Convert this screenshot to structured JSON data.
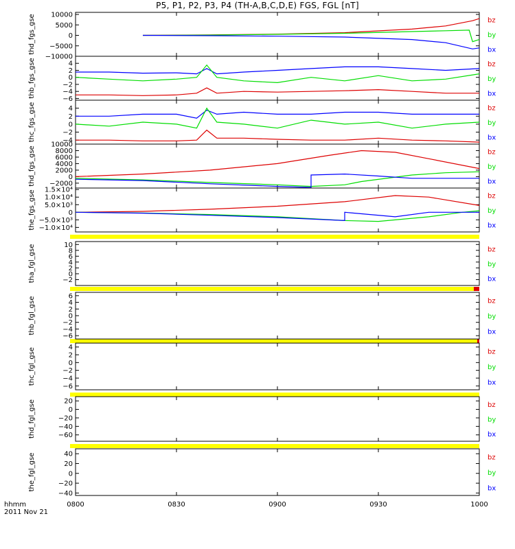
{
  "title": "P5, P1, P2, P3, P4 (TH-A,B,C,D,E) FGS, FGL [nT]",
  "time_axis": {
    "label_line1": "hhmm",
    "label_line2": "2011 Nov 21",
    "range": [
      "08:00",
      "10:00"
    ],
    "tick_labels": [
      "0800",
      "0830",
      "0900",
      "0930",
      "1000"
    ],
    "tick_minutes": [
      0,
      30,
      60,
      90,
      120
    ]
  },
  "colors": {
    "bx": "#0000ff",
    "by": "#00dd00",
    "bz": "#dd0000",
    "nodata": "#ffff00",
    "axis": "#000000"
  },
  "chart_data": [
    {
      "type": "line",
      "ylabel": "thd_fgs_gse",
      "ylim": [
        -10000,
        11000
      ],
      "yticks": [
        -10000,
        -5000,
        0,
        5000,
        10000
      ],
      "ytick_labels": [
        "−10000",
        "−5000",
        "0",
        "5000",
        "10000"
      ],
      "legend": [
        "bz",
        "by",
        "bx"
      ],
      "series": [
        {
          "name": "bz",
          "x": [
            20,
            40,
            60,
            80,
            100,
            110,
            118,
            120
          ],
          "y": [
            0,
            200,
            600,
            1300,
            3000,
            4500,
            7000,
            8000
          ]
        },
        {
          "name": "by",
          "x": [
            20,
            40,
            60,
            80,
            100,
            110,
            117,
            118,
            120
          ],
          "y": [
            0,
            150,
            500,
            1000,
            1800,
            2200,
            2500,
            -3000,
            -2000
          ]
        },
        {
          "name": "bx",
          "x": [
            20,
            40,
            60,
            80,
            100,
            110,
            118,
            120
          ],
          "y": [
            0,
            -150,
            -400,
            -800,
            -2000,
            -3500,
            -6500,
            -6000
          ]
        }
      ]
    },
    {
      "type": "line",
      "ylabel": "thb_fgs_gse",
      "ylim": [
        -6.5,
        6
      ],
      "yticks": [
        -6,
        -4,
        -2,
        0,
        2,
        4
      ],
      "ytick_labels": [
        "−6",
        "−4",
        "−2",
        "0",
        "2",
        "4"
      ],
      "legend": [
        "bz",
        "by",
        "bx"
      ],
      "series": [
        {
          "name": "bx",
          "x": [
            0,
            10,
            20,
            30,
            36,
            39,
            42,
            50,
            60,
            70,
            80,
            90,
            100,
            110,
            120
          ],
          "y": [
            1.5,
            1.5,
            1.2,
            1.3,
            1.0,
            2.5,
            1.0,
            1.5,
            2.0,
            2.5,
            3.0,
            3.0,
            2.5,
            2.0,
            2.5
          ]
        },
        {
          "name": "by",
          "x": [
            0,
            10,
            20,
            30,
            36,
            39,
            42,
            50,
            60,
            70,
            80,
            90,
            100,
            110,
            120
          ],
          "y": [
            0.0,
            -0.5,
            -1.0,
            -0.5,
            0.0,
            3.5,
            0.0,
            -1.0,
            -1.5,
            0.0,
            -1.0,
            0.5,
            -1.0,
            -0.5,
            1.0
          ]
        },
        {
          "name": "bz",
          "x": [
            0,
            10,
            20,
            30,
            36,
            39,
            42,
            50,
            60,
            70,
            80,
            90,
            100,
            110,
            120
          ],
          "y": [
            -5.0,
            -5.0,
            -5.2,
            -5.0,
            -4.5,
            -3.0,
            -4.5,
            -4.0,
            -4.2,
            -4.0,
            -3.8,
            -3.5,
            -4.0,
            -4.5,
            -4.5
          ]
        }
      ]
    },
    {
      "type": "line",
      "ylabel": "thc_fgs_gse",
      "ylim": [
        -5,
        6
      ],
      "yticks": [
        -4,
        -2,
        0,
        2,
        4
      ],
      "ytick_labels": [
        "−4",
        "−2",
        "0",
        "2",
        "4"
      ],
      "legend": [
        "bz",
        "by",
        "bx"
      ],
      "series": [
        {
          "name": "bx",
          "x": [
            0,
            10,
            20,
            30,
            36,
            39,
            42,
            50,
            60,
            70,
            80,
            90,
            100,
            110,
            120
          ],
          "y": [
            2.0,
            2.0,
            2.5,
            2.5,
            1.5,
            3.5,
            2.5,
            3.0,
            2.5,
            2.5,
            3.0,
            3.0,
            2.5,
            2.5,
            2.5
          ]
        },
        {
          "name": "by",
          "x": [
            0,
            10,
            20,
            30,
            36,
            39,
            42,
            50,
            60,
            70,
            80,
            90,
            100,
            110,
            120
          ],
          "y": [
            0.0,
            -0.5,
            0.5,
            0.0,
            -1.0,
            4.0,
            0.5,
            0.0,
            -1.0,
            1.0,
            0.0,
            0.5,
            -1.0,
            0.0,
            0.5
          ]
        },
        {
          "name": "bz",
          "x": [
            0,
            10,
            20,
            30,
            36,
            39,
            42,
            50,
            60,
            70,
            80,
            90,
            100,
            110,
            120
          ],
          "y": [
            -4.0,
            -4.0,
            -4.2,
            -4.2,
            -4.0,
            -1.5,
            -3.5,
            -3.5,
            -3.8,
            -4.0,
            -4.0,
            -3.5,
            -4.0,
            -4.2,
            -4.5
          ]
        }
      ]
    },
    {
      "type": "line",
      "ylabel": "thd_fgs_gse",
      "ylim": [
        -3500,
        10000
      ],
      "yticks": [
        -2000,
        0,
        2000,
        4000,
        6000,
        8000,
        10000
      ],
      "ytick_labels": [
        "−2000",
        "0",
        "2000",
        "4000",
        "6000",
        "8000",
        "10000"
      ],
      "legend": [
        "bz",
        "by",
        "bx"
      ],
      "series": [
        {
          "name": "bz",
          "x": [
            0,
            20,
            40,
            60,
            75,
            85,
            95,
            105,
            120
          ],
          "y": [
            0,
            800,
            2000,
            4000,
            6500,
            8000,
            7500,
            5500,
            2500
          ]
        },
        {
          "name": "by",
          "x": [
            0,
            20,
            40,
            60,
            70,
            80,
            85,
            100,
            110,
            120
          ],
          "y": [
            -500,
            -1000,
            -1800,
            -2500,
            -3000,
            -2500,
            -1500,
            500,
            1200,
            1500
          ]
        },
        {
          "name": "bx",
          "x": [
            0,
            20,
            40,
            60,
            70,
            70.01,
            80,
            90,
            100,
            120
          ],
          "y": [
            -800,
            -1200,
            -2200,
            -3000,
            -3300,
            500,
            800,
            200,
            -500,
            -500
          ]
        }
      ]
    },
    {
      "type": "line",
      "ylabel": "the_fgs_gse",
      "ylim": [
        -13000,
        16000
      ],
      "yticks": [
        -10000,
        -5000,
        0,
        5000,
        10000,
        15000
      ],
      "ytick_labels": [
        "−1.0×10⁴",
        "−5.0×10³",
        "0",
        "5.0×10³",
        "1.0×10⁴",
        "1.5×10⁴"
      ],
      "legend": [
        "bz",
        "by",
        "bx"
      ],
      "series": [
        {
          "name": "bz",
          "x": [
            0,
            20,
            40,
            60,
            80,
            95,
            105,
            120
          ],
          "y": [
            0,
            600,
            2000,
            4000,
            7000,
            11000,
            10000,
            4500
          ]
        },
        {
          "name": "by",
          "x": [
            0,
            20,
            40,
            60,
            80,
            90,
            105,
            115,
            120
          ],
          "y": [
            0,
            -500,
            -1500,
            -3000,
            -5500,
            -6000,
            -3000,
            0,
            1000
          ]
        },
        {
          "name": "bx",
          "x": [
            0,
            20,
            40,
            60,
            80,
            80.01,
            95,
            105,
            120
          ],
          "y": [
            0,
            -600,
            -2000,
            -3500,
            -5500,
            0,
            -3000,
            0,
            0
          ]
        }
      ]
    },
    {
      "type": "line",
      "ylabel": "tha_fgl_gse",
      "ylim": [
        -4,
        11
      ],
      "yticks": [
        -2,
        0,
        2,
        4,
        6,
        8,
        10
      ],
      "ytick_labels": [
        "−2",
        "0",
        "2",
        "4",
        "6",
        "8",
        "10"
      ],
      "legend": [
        "bz",
        "by",
        "bx"
      ],
      "series": []
    },
    {
      "type": "line",
      "ylabel": "thb_fgl_gse",
      "ylim": [
        -7,
        7
      ],
      "yticks": [
        -6,
        -4,
        -2,
        0,
        2,
        4,
        6
      ],
      "ytick_labels": [
        "−6",
        "−4",
        "−2",
        "0",
        "2",
        "4",
        "6"
      ],
      "legend": [
        "bz",
        "by",
        "bx"
      ],
      "series": []
    },
    {
      "type": "line",
      "ylabel": "thc_fgl_gse",
      "ylim": [
        -7,
        5
      ],
      "yticks": [
        -6,
        -4,
        -2,
        0,
        2,
        4
      ],
      "ytick_labels": [
        "−6",
        "−4",
        "−2",
        "0",
        "2",
        "4"
      ],
      "legend": [
        "bz",
        "by",
        "bx"
      ],
      "series": []
    },
    {
      "type": "line",
      "ylabel": "thd_fgl_gse",
      "ylim": [
        -75,
        30
      ],
      "yticks": [
        -60,
        -40,
        -20,
        0,
        20
      ],
      "ytick_labels": [
        "−60",
        "−40",
        "−20",
        "0",
        "20"
      ],
      "legend": [
        "bz",
        "by",
        "bx"
      ],
      "series": []
    },
    {
      "type": "line",
      "ylabel": "the_fgl_gse",
      "ylim": [
        -45,
        50
      ],
      "yticks": [
        -40,
        -20,
        0,
        20,
        40
      ],
      "ytick_labels": [
        "−40",
        "−20",
        "0",
        "20",
        "40"
      ],
      "legend": [
        "bz",
        "by",
        "bx"
      ],
      "series": []
    }
  ]
}
